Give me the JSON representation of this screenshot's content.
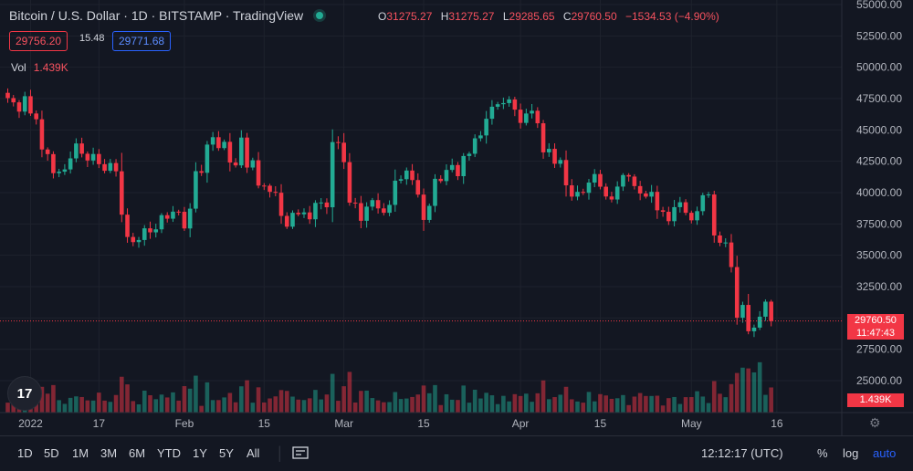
{
  "header": {
    "title": "Bitcoin / U.S. Dollar · 1D · BITSTAMP · TradingView",
    "ohlc": [
      {
        "k": "O",
        "v": "31275.27"
      },
      {
        "k": "H",
        "v": "31275.27"
      },
      {
        "k": "L",
        "v": "29285.65"
      },
      {
        "k": "C",
        "v": "29760.50"
      }
    ],
    "change": "−1534.53 (−4.90%)",
    "sell_price": "29756.20",
    "spread": "15.48",
    "buy_price": "29771.68",
    "vol_label": "Vol",
    "vol_value": "1.439K"
  },
  "price_tag": {
    "price": "29760.50",
    "countdown": "11:47:43"
  },
  "volume_tag": "1.439K",
  "logo_text": "17",
  "toolbar": {
    "timeframes": [
      "1D",
      "5D",
      "1M",
      "3M",
      "6M",
      "YTD",
      "1Y",
      "5Y",
      "All"
    ],
    "time": "12:12:17 (UTC)",
    "percent": "%",
    "log": "log",
    "auto": "auto"
  },
  "colors": {
    "up": "#22ab94",
    "down": "#f23645",
    "bg": "#131722",
    "grid": "#1e222d"
  },
  "chart_data": {
    "type": "candlestick",
    "symbol": "BTCUSD",
    "interval": "1D",
    "exchange": "BITSTAMP",
    "y_ticks": [
      25000,
      27500,
      30000,
      32500,
      35000,
      37500,
      40000,
      42500,
      45000,
      47500,
      50000,
      52500,
      55000
    ],
    "x_labels": [
      {
        "label": "2022",
        "day": 4
      },
      {
        "label": "17",
        "day": 16
      },
      {
        "label": "Feb",
        "day": 31
      },
      {
        "label": "15",
        "day": 45
      },
      {
        "label": "Mar",
        "day": 59
      },
      {
        "label": "15",
        "day": 73
      },
      {
        "label": "Apr",
        "day": 90
      },
      {
        "label": "15",
        "day": 104
      },
      {
        "label": "May",
        "day": 120
      },
      {
        "label": "16",
        "day": 135
      }
    ],
    "first_date": "2021-12-28",
    "closes": [
      47540,
      47200,
      46460,
      47690,
      46310,
      45850,
      43440,
      43070,
      41550,
      41670,
      41850,
      42730,
      43920,
      43100,
      42560,
      43080,
      42270,
      41740,
      42360,
      41700,
      38240,
      36460,
      36050,
      36220,
      37150,
      36830,
      37070,
      38200,
      37920,
      38480,
      38470,
      37140,
      38720,
      41710,
      41580,
      43830,
      44420,
      43550,
      44050,
      42400,
      42170,
      44390,
      42000,
      42580,
      40560,
      40550,
      40060,
      39990,
      38140,
      37280,
      38390,
      38270,
      38420,
      37870,
      39180,
      39210,
      38830,
      44030,
      43980,
      42430,
      39200,
      39160,
      37750,
      38880,
      39400,
      38740,
      38390,
      39020,
      40950,
      41070,
      41760,
      41000,
      39840,
      37820,
      38940,
      41100,
      40920,
      41810,
      42200,
      41310,
      42920,
      43100,
      44330,
      44560,
      45890,
      46850,
      47050,
      47140,
      47430,
      46620,
      45560,
      46310,
      46530,
      45530,
      43210,
      43490,
      42300,
      42600,
      40580,
      39680,
      40060,
      39980,
      40800,
      41480,
      40470,
      39690,
      39450,
      40480,
      41400,
      41280,
      40520,
      39930,
      39680,
      40060,
      38590,
      38470,
      37720,
      38840,
      39230,
      38390,
      37790,
      38520,
      39790,
      39850,
      36580,
      36000,
      36020,
      34060,
      30020,
      31040,
      28940,
      29230,
      30100,
      31300,
      29760
    ]
  }
}
